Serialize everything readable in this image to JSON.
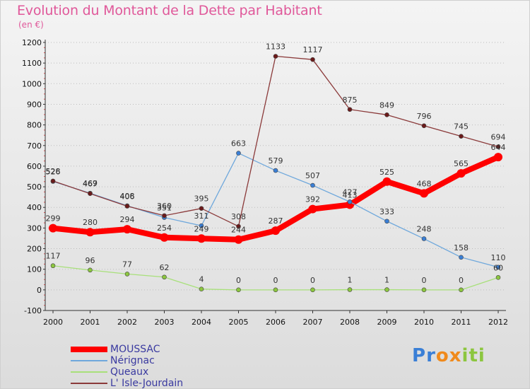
{
  "header": {
    "title": "Evolution du Montant de la Dette par Habitant",
    "subtitle": "(en €)"
  },
  "logo": {
    "text": "Proxiti",
    "letters": [
      "P",
      "r",
      "o",
      "x",
      "i",
      "t",
      "i"
    ],
    "colors": [
      "#3a7fd6",
      "#3a7fd6",
      "#f08a1c",
      "#f08a1c",
      "#8cc63f",
      "#8cc63f",
      "#8cc63f"
    ]
  },
  "chart_data": {
    "type": "line",
    "title": "Evolution du Montant de la Dette par Habitant",
    "subtitle": "(en €)",
    "x": [
      "2000",
      "2001",
      "2002",
      "2003",
      "2004",
      "2005",
      "2006",
      "2007",
      "2008",
      "2009",
      "2010",
      "2011",
      "2012"
    ],
    "ylim": [
      -100,
      1200
    ],
    "yticks": [
      -100,
      0,
      100,
      200,
      300,
      400,
      500,
      600,
      700,
      800,
      900,
      1000,
      1100,
      1200
    ],
    "grid": "horizontal dotted",
    "legend_position": "bottom-left",
    "series": [
      {
        "name": "MOUSSAC",
        "color": "#ff0000",
        "marker": "#ff0000",
        "values": [
          299,
          280,
          294,
          254,
          249,
          244,
          287,
          392,
          413,
          525,
          468,
          565,
          644
        ],
        "labels": [
          "299",
          "280",
          "294",
          "254",
          "249",
          "244",
          "287",
          "392",
          "413",
          "525",
          "468",
          "565",
          "644"
        ]
      },
      {
        "name": "Nérignac",
        "color": "#6fa8dc",
        "marker": "#3a7fd6",
        "values": [
          526,
          469,
          408,
          351,
          311,
          663,
          579,
          507,
          427,
          333,
          248,
          158,
          110
        ],
        "labels": [
          "526",
          "469",
          "408",
          "351",
          "311",
          "663",
          "579",
          "507",
          "427",
          "333",
          "248",
          "158",
          "110"
        ]
      },
      {
        "name": "Queaux",
        "color": "#a8e07a",
        "marker": "#8cc63f",
        "values": [
          117,
          96,
          77,
          62,
          4,
          0,
          0,
          0,
          1,
          1,
          0,
          0,
          60
        ],
        "labels": [
          "117",
          "96",
          "77",
          "62",
          "4",
          "0",
          "0",
          "0",
          "1",
          "1",
          "0",
          "0",
          "60"
        ]
      },
      {
        "name": "L' Isle-Jourdain",
        "color": "#8b3a3a",
        "marker": "#6b1a1a",
        "values": [
          528,
          467,
          406,
          360,
          395,
          308,
          1133,
          1117,
          875,
          849,
          796,
          745,
          694
        ],
        "labels": [
          "528",
          "467",
          "406",
          "360",
          "395",
          "308",
          "1133",
          "1117",
          "875",
          "849",
          "796",
          "745",
          "694"
        ]
      }
    ]
  }
}
